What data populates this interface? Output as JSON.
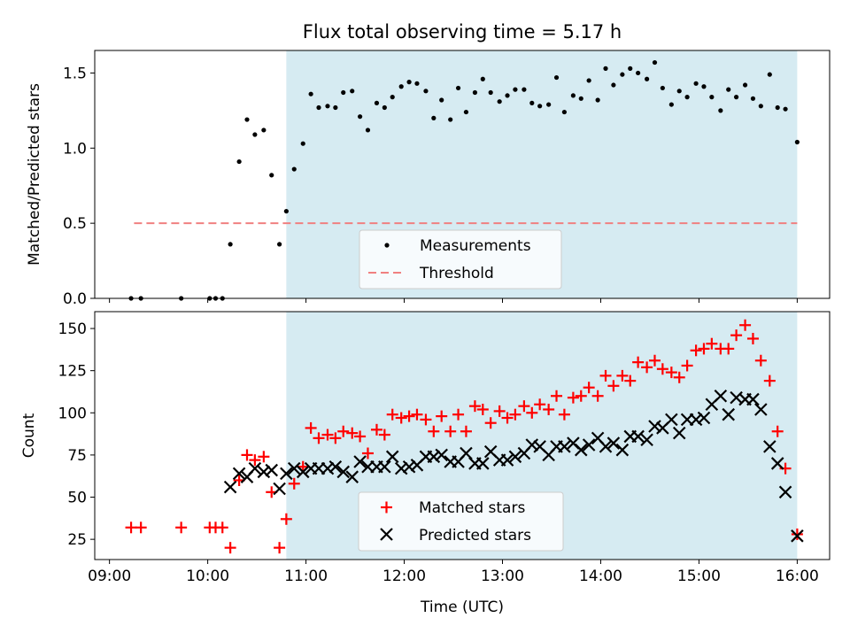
{
  "chart_data": [
    {
      "type": "scatter",
      "title": "Flux total observing time = 5.17 h",
      "xlabel": "",
      "ylabel": "Matched/Predicted stars",
      "ylim": [
        0,
        1.65
      ],
      "xlim_hours": [
        8.85,
        16.33
      ],
      "yticks": [
        0.0,
        0.5,
        1.0,
        1.5
      ],
      "yticklabels": [
        "0.0",
        "0.5",
        "1.0",
        "1.5"
      ],
      "shaded_interval_hours": [
        10.8,
        16.0
      ],
      "threshold": {
        "name": "Threshold",
        "value": 0.5,
        "x_range_hours": [
          9.25,
          16.0
        ],
        "color": "#f08080"
      },
      "legend": {
        "location": "bottom-center",
        "entries": [
          "Measurements",
          "Threshold"
        ]
      },
      "series": [
        {
          "name": "Measurements",
          "color": "#000000",
          "marker": "dot",
          "x_hours": [
            9.22,
            9.32,
            9.73,
            10.02,
            10.08,
            10.15,
            10.23,
            10.32,
            10.4,
            10.48,
            10.57,
            10.65,
            10.73,
            10.8,
            10.88,
            10.97,
            11.05,
            11.13,
            11.22,
            11.3,
            11.38,
            11.47,
            11.55,
            11.63,
            11.72,
            11.8,
            11.88,
            11.97,
            12.05,
            12.13,
            12.22,
            12.3,
            12.38,
            12.47,
            12.55,
            12.63,
            12.72,
            12.8,
            12.88,
            12.97,
            13.05,
            13.13,
            13.22,
            13.3,
            13.38,
            13.47,
            13.55,
            13.63,
            13.72,
            13.8,
            13.88,
            13.97,
            14.05,
            14.13,
            14.22,
            14.3,
            14.38,
            14.47,
            14.55,
            14.63,
            14.72,
            14.8,
            14.88,
            14.97,
            15.05,
            15.13,
            15.22,
            15.3,
            15.38,
            15.47,
            15.55,
            15.63,
            15.72,
            15.8,
            15.88,
            16.0
          ],
          "y": [
            0,
            0,
            0,
            0,
            0,
            0,
            0.36,
            0.91,
            1.19,
            1.09,
            1.12,
            0.82,
            0.36,
            0.58,
            0.86,
            1.03,
            1.36,
            1.27,
            1.28,
            1.27,
            1.37,
            1.38,
            1.21,
            1.12,
            1.3,
            1.27,
            1.34,
            1.41,
            1.44,
            1.43,
            1.38,
            1.2,
            1.32,
            1.19,
            1.4,
            1.24,
            1.37,
            1.46,
            1.37,
            1.31,
            1.35,
            1.39,
            1.39,
            1.3,
            1.28,
            1.29,
            1.47,
            1.24,
            1.35,
            1.33,
            1.45,
            1.32,
            1.53,
            1.42,
            1.49,
            1.53,
            1.5,
            1.46,
            1.57,
            1.4,
            1.29,
            1.38,
            1.34,
            1.43,
            1.41,
            1.34,
            1.25,
            1.39,
            1.34,
            1.42,
            1.33,
            1.28,
            1.49,
            1.27,
            1.26,
            1.04
          ]
        }
      ]
    },
    {
      "type": "scatter",
      "title": "",
      "xlabel": "Time (UTC)",
      "ylabel": "Count",
      "ylim": [
        13,
        160
      ],
      "xlim_hours": [
        8.85,
        16.33
      ],
      "yticks": [
        25,
        50,
        75,
        100,
        125,
        150
      ],
      "yticklabels": [
        "25",
        "50",
        "75",
        "100",
        "125",
        "150"
      ],
      "xticks_hours": [
        9,
        10,
        11,
        12,
        13,
        14,
        15,
        16
      ],
      "xticklabels": [
        "09:00",
        "10:00",
        "11:00",
        "12:00",
        "13:00",
        "14:00",
        "15:00",
        "16:00"
      ],
      "shaded_interval_hours": [
        10.8,
        16.0
      ],
      "legend": {
        "location": "bottom-center",
        "entries": [
          "Matched stars",
          "Predicted stars"
        ]
      },
      "series": [
        {
          "name": "Matched stars",
          "color": "#ff0000",
          "marker": "plus",
          "x_hours": [
            9.22,
            9.32,
            9.73,
            10.02,
            10.08,
            10.15,
            10.23,
            10.32,
            10.4,
            10.48,
            10.57,
            10.65,
            10.73,
            10.8,
            10.88,
            10.97,
            11.05,
            11.13,
            11.22,
            11.3,
            11.38,
            11.47,
            11.55,
            11.63,
            11.72,
            11.8,
            11.88,
            11.97,
            12.05,
            12.13,
            12.22,
            12.3,
            12.38,
            12.47,
            12.55,
            12.63,
            12.72,
            12.8,
            12.88,
            12.97,
            13.05,
            13.13,
            13.22,
            13.3,
            13.38,
            13.47,
            13.55,
            13.63,
            13.72,
            13.8,
            13.88,
            13.97,
            14.05,
            14.13,
            14.22,
            14.3,
            14.38,
            14.47,
            14.55,
            14.63,
            14.72,
            14.8,
            14.88,
            14.97,
            15.05,
            15.13,
            15.22,
            15.3,
            15.38,
            15.47,
            15.55,
            15.63,
            15.72,
            15.8,
            15.88,
            16.0
          ],
          "y": [
            32,
            32,
            32,
            32,
            32,
            32,
            20,
            60,
            75,
            72,
            74,
            53,
            20,
            37,
            58,
            68,
            91,
            85,
            87,
            85,
            89,
            88,
            86,
            76,
            90,
            87,
            99,
            97,
            98,
            99,
            96,
            89,
            98,
            89,
            99,
            89,
            104,
            102,
            94,
            101,
            97,
            99,
            104,
            100,
            105,
            102,
            110,
            99,
            109,
            110,
            115,
            110,
            122,
            116,
            122,
            119,
            130,
            127,
            131,
            126,
            124,
            121,
            128,
            137,
            138,
            141,
            138,
            138,
            146,
            152,
            144,
            131,
            119,
            89,
            67,
            28
          ]
        },
        {
          "name": "Predicted stars",
          "color": "#000000",
          "marker": "x",
          "x_hours": [
            10.23,
            10.32,
            10.4,
            10.48,
            10.57,
            10.65,
            10.73,
            10.8,
            10.88,
            10.97,
            11.05,
            11.13,
            11.22,
            11.3,
            11.38,
            11.47,
            11.55,
            11.63,
            11.72,
            11.8,
            11.88,
            11.97,
            12.05,
            12.13,
            12.22,
            12.3,
            12.38,
            12.47,
            12.55,
            12.63,
            12.72,
            12.8,
            12.88,
            12.97,
            13.05,
            13.13,
            13.22,
            13.3,
            13.38,
            13.47,
            13.55,
            13.63,
            13.72,
            13.8,
            13.88,
            13.97,
            14.05,
            14.13,
            14.22,
            14.3,
            14.38,
            14.47,
            14.55,
            14.63,
            14.72,
            14.8,
            14.88,
            14.97,
            15.05,
            15.13,
            15.22,
            15.3,
            15.38,
            15.47,
            15.55,
            15.63,
            15.72,
            15.8,
            15.88,
            16.0
          ],
          "y": [
            56,
            64,
            62,
            67,
            65,
            66,
            55,
            64,
            67,
            65,
            67,
            67,
            67,
            68,
            65,
            62,
            71,
            68,
            68,
            68,
            74,
            67,
            68,
            69,
            74,
            74,
            75,
            71,
            71,
            76,
            70,
            70,
            77,
            72,
            72,
            74,
            76,
            81,
            80,
            75,
            80,
            80,
            82,
            78,
            81,
            85,
            80,
            82,
            78,
            86,
            86,
            84,
            92,
            91,
            96,
            88,
            96,
            96,
            97,
            105,
            110,
            99,
            109,
            108,
            108,
            102,
            80,
            70,
            53,
            27
          ]
        }
      ]
    }
  ]
}
